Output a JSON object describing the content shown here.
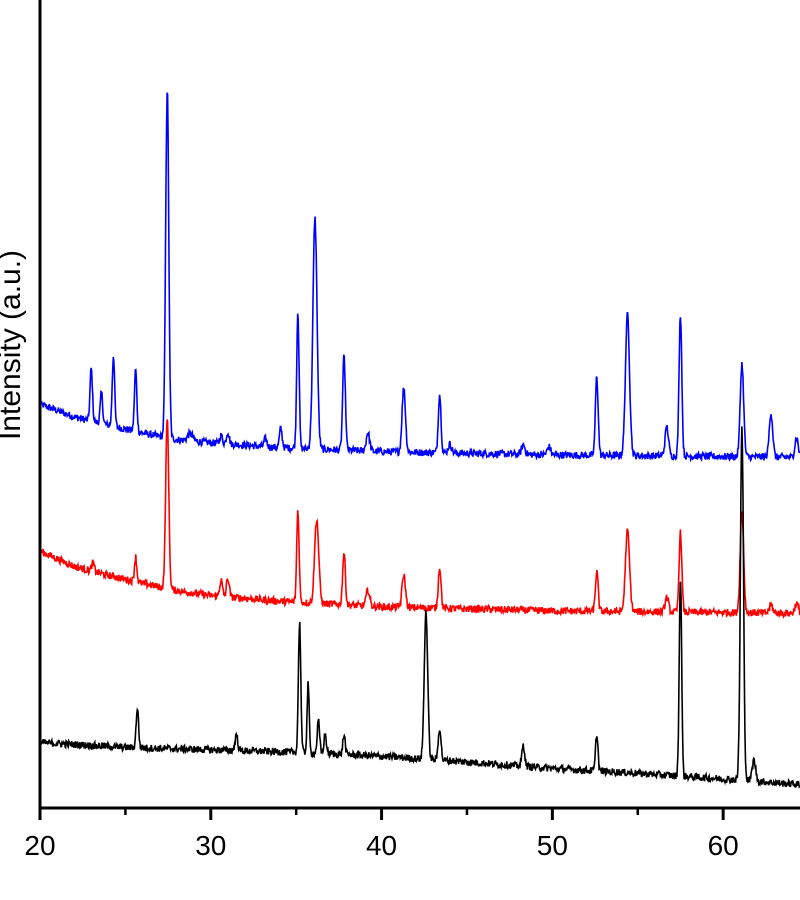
{
  "chart_data": {
    "type": "line",
    "title": "",
    "xlabel": "",
    "ylabel": "Intensity (a.u.)",
    "xlim": [
      20,
      64.5
    ],
    "ylim": [
      0,
      100
    ],
    "xticks": [
      20,
      30,
      40,
      50,
      60
    ],
    "x_tick_labels": [
      "20",
      "30",
      "40",
      "50",
      "60"
    ],
    "grid": false,
    "legend": "none",
    "series": [
      {
        "color": "#0000ff",
        "baseline": [
          [
            20,
            50.0
          ],
          [
            22,
            48.4
          ],
          [
            24,
            47.4
          ],
          [
            26,
            46.4
          ],
          [
            28,
            45.6
          ],
          [
            30,
            45.2
          ],
          [
            34,
            44.6
          ],
          [
            40,
            44.1
          ],
          [
            50,
            43.7
          ],
          [
            60,
            43.5
          ],
          [
            64.5,
            43.4
          ]
        ],
        "peaks": [
          [
            23.0,
            6.5,
            0.07
          ],
          [
            23.6,
            3.8,
            0.07
          ],
          [
            24.3,
            8.8,
            0.07
          ],
          [
            25.6,
            7.7,
            0.07
          ],
          [
            27.45,
            43.2,
            0.09
          ],
          [
            28.8,
            0.9,
            0.15
          ],
          [
            30.6,
            1.0,
            0.08
          ],
          [
            31.0,
            1.5,
            0.08
          ],
          [
            33.2,
            1.0,
            0.08
          ],
          [
            34.1,
            2.4,
            0.08
          ],
          [
            35.1,
            17.0,
            0.07
          ],
          [
            36.1,
            28.6,
            0.12
          ],
          [
            37.8,
            11.5,
            0.08
          ],
          [
            39.2,
            2.3,
            0.1
          ],
          [
            41.3,
            8.0,
            0.1
          ],
          [
            43.4,
            7.2,
            0.08
          ],
          [
            44.0,
            1.1,
            0.1
          ],
          [
            48.3,
            1.2,
            0.1
          ],
          [
            49.8,
            1.0,
            0.1
          ],
          [
            52.6,
            9.8,
            0.08
          ],
          [
            54.4,
            17.5,
            0.12
          ],
          [
            56.7,
            3.6,
            0.1
          ],
          [
            57.5,
            17.5,
            0.08
          ],
          [
            61.1,
            11.5,
            0.1
          ],
          [
            62.8,
            5.5,
            0.1
          ],
          [
            64.3,
            2.4,
            0.1
          ]
        ]
      },
      {
        "color": "#ff0000",
        "baseline": [
          [
            20,
            31.8
          ],
          [
            22,
            29.9
          ],
          [
            24,
            28.8
          ],
          [
            26,
            27.8
          ],
          [
            28,
            26.9
          ],
          [
            30,
            26.3
          ],
          [
            34,
            25.6
          ],
          [
            40,
            24.9
          ],
          [
            50,
            24.4
          ],
          [
            60,
            24.2
          ],
          [
            64.5,
            24.1
          ]
        ],
        "peaks": [
          [
            23.1,
            1.0,
            0.08
          ],
          [
            25.6,
            3.1,
            0.07
          ],
          [
            27.45,
            21.0,
            0.09
          ],
          [
            30.6,
            2.0,
            0.08
          ],
          [
            31.0,
            2.3,
            0.08
          ],
          [
            35.1,
            11.4,
            0.07
          ],
          [
            36.2,
            10.4,
            0.12
          ],
          [
            37.8,
            6.4,
            0.08
          ],
          [
            39.2,
            2.0,
            0.1
          ],
          [
            41.3,
            4.0,
            0.1
          ],
          [
            43.4,
            5.1,
            0.08
          ],
          [
            52.6,
            4.9,
            0.08
          ],
          [
            54.4,
            10.0,
            0.12
          ],
          [
            56.7,
            1.8,
            0.1
          ],
          [
            57.5,
            9.8,
            0.08
          ],
          [
            61.1,
            12.6,
            0.1
          ],
          [
            62.8,
            1.0,
            0.1
          ],
          [
            64.3,
            1.2,
            0.1
          ]
        ]
      },
      {
        "color": "#000000",
        "baseline": [
          [
            20,
            8.1
          ],
          [
            25,
            7.5
          ],
          [
            30,
            7.2
          ],
          [
            35,
            6.9
          ],
          [
            40,
            6.4
          ],
          [
            45,
            5.7
          ],
          [
            50,
            4.9
          ],
          [
            55,
            4.3
          ],
          [
            60,
            3.6
          ],
          [
            62,
            3.3
          ],
          [
            64.5,
            2.9
          ]
        ],
        "peaks": [
          [
            25.7,
            4.9,
            0.07
          ],
          [
            31.5,
            1.9,
            0.08
          ],
          [
            35.2,
            16.0,
            0.07
          ],
          [
            35.7,
            8.6,
            0.06
          ],
          [
            36.3,
            4.0,
            0.07
          ],
          [
            36.7,
            2.4,
            0.07
          ],
          [
            37.8,
            2.4,
            0.07
          ],
          [
            42.6,
            18.4,
            0.1
          ],
          [
            43.4,
            4.0,
            0.08
          ],
          [
            48.3,
            2.6,
            0.08
          ],
          [
            52.6,
            4.6,
            0.07
          ],
          [
            57.5,
            24.5,
            0.07
          ],
          [
            61.1,
            43.6,
            0.09
          ],
          [
            61.8,
            2.6,
            0.1
          ]
        ]
      }
    ]
  }
}
